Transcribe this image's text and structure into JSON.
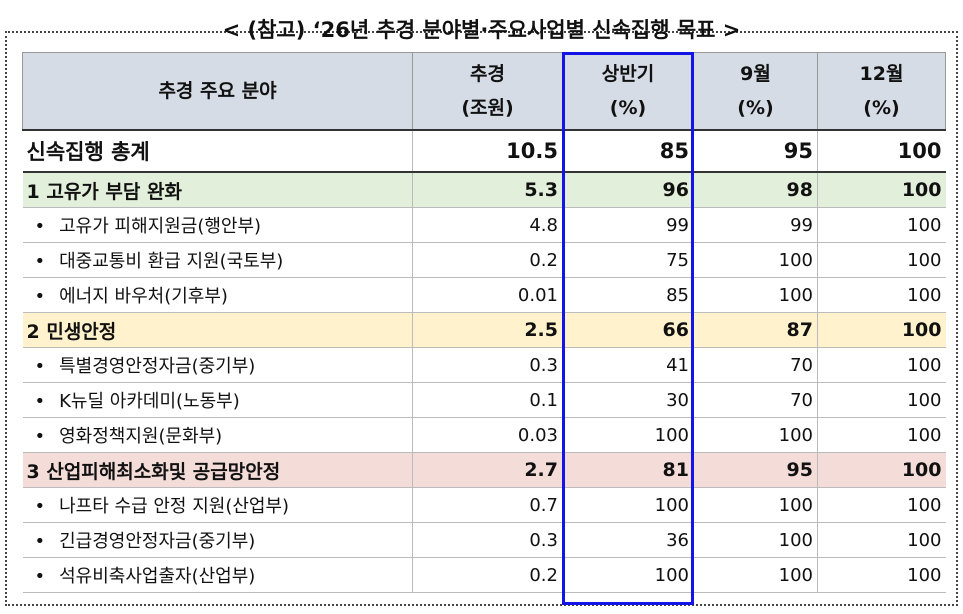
{
  "title": "< (참고) ‘26년 추경 분야별·주요사업별 신속집행 목표 >",
  "table": {
    "headers": [
      [
        "추경 주요 분야"
      ],
      [
        "추경",
        "(조원)"
      ],
      [
        "상반기",
        "(%)"
      ],
      [
        "9월",
        "(%)"
      ],
      [
        "12월",
        "(%)"
      ]
    ],
    "rows": [
      [
        "신속집행 총계",
        "10.5",
        "85",
        "95",
        "100"
      ],
      [
        "1 고유가 부담 완화",
        "5.3",
        "96",
        "98",
        "100"
      ],
      [
        "고유가 피해지원금(행안부)",
        "4.8",
        "99",
        "99",
        "100"
      ],
      [
        "대중교통비 환급 지원(국토부)",
        "0.2",
        "75",
        "100",
        "100"
      ],
      [
        "에너지 바우처(기후부)",
        "0.01",
        "85",
        "100",
        "100"
      ],
      [
        "2 민생안정",
        "2.5",
        "66",
        "87",
        "100"
      ],
      [
        "특별경영안정자금(중기부)",
        "0.3",
        "41",
        "70",
        "100"
      ],
      [
        "K뉴딜 아카데미(노동부)",
        "0.1",
        "30",
        "70",
        "100"
      ],
      [
        "영화정책지원(문화부)",
        "0.03",
        "100",
        "100",
        "100"
      ],
      [
        "3 산업피해최소화및 공급망안정",
        "2.7",
        "81",
        "95",
        "100"
      ],
      [
        "나프타 수급 안정 지원(산업부)",
        "0.7",
        "100",
        "100",
        "100"
      ],
      [
        "긴급경영안정자금(중기부)",
        "0.3",
        "36",
        "100",
        "100"
      ],
      [
        "석유비축사업출자(산업부)",
        "0.2",
        "100",
        "100",
        "100"
      ]
    ]
  }
}
